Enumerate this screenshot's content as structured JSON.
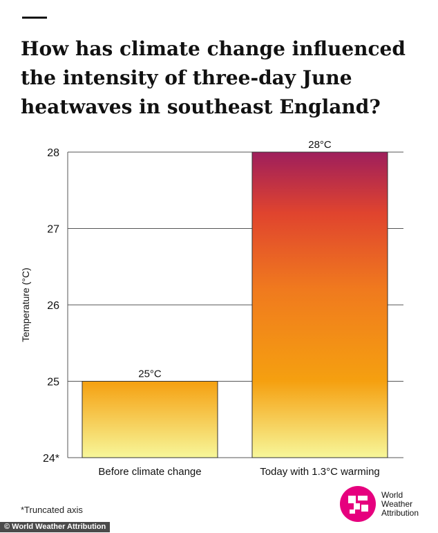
{
  "title_lines": [
    "How has climate change influenced",
    "the intensity of three-day June",
    "heatwaves in southeast England?"
  ],
  "footnote": "*Truncated axis",
  "logo": {
    "icon": "world-weather-attribution-logo",
    "lines": [
      "World",
      "Weather",
      "Attribution"
    ],
    "color": "#e6007e"
  },
  "credit": "© World Weather Attribution",
  "colors": {
    "bar_top": "#9e1e5c",
    "bar_mid_red": "#e0442e",
    "bar_orange": "#f5a010",
    "bar_bottom": "#f7f79a",
    "grid": "#555555",
    "text": "#111111"
  },
  "chart_data": {
    "type": "bar",
    "categories": [
      "Before climate change",
      "Today with 1.3°C warming"
    ],
    "values": [
      25,
      28
    ],
    "data_labels": [
      "25°C",
      "28°C"
    ],
    "ylabel": "Temperature (°C)",
    "ylim": [
      24,
      28
    ],
    "yticks": [
      24,
      25,
      26,
      27,
      28
    ],
    "ytick_labels": [
      "24*",
      "25",
      "26",
      "27",
      "28"
    ],
    "grid": true
  }
}
